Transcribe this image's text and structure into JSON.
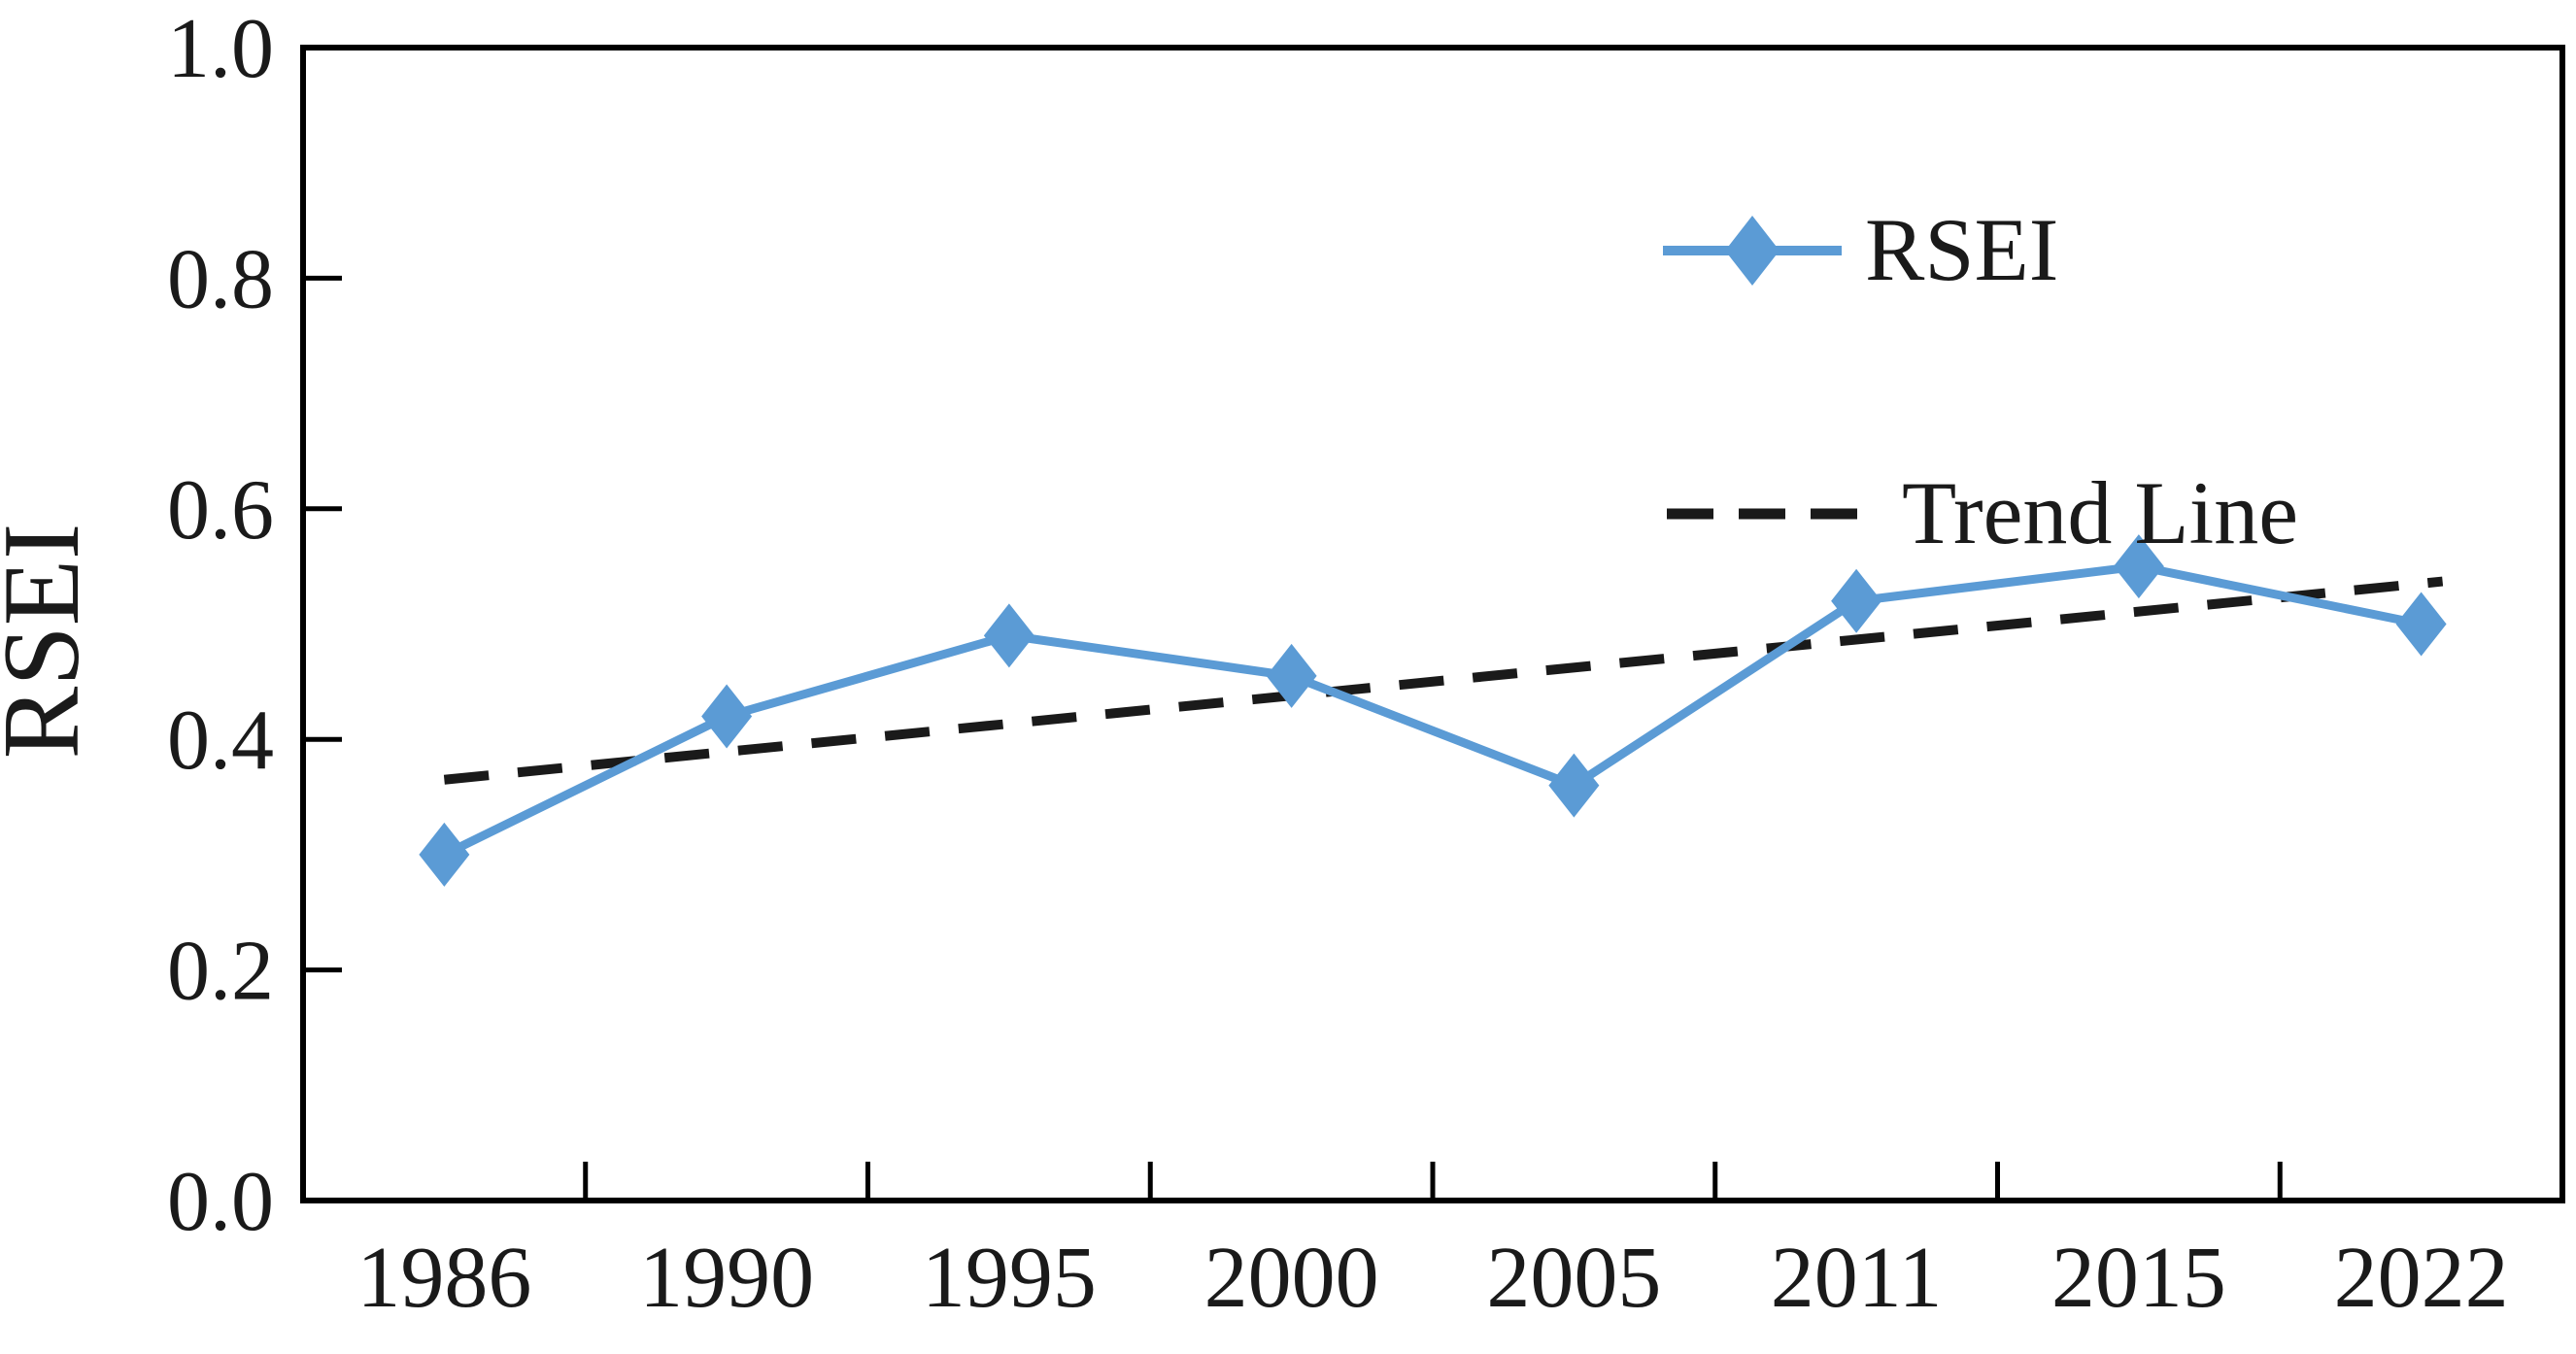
{
  "chart_data": {
    "type": "line",
    "title": "",
    "xlabel": "",
    "ylabel": "RSEI",
    "ylim": [
      0.0,
      1.0
    ],
    "grid": false,
    "legend_position": "upper-right",
    "categories": [
      "1986",
      "1990",
      "1995",
      "2000",
      "2005",
      "2011",
      "2015",
      "2022"
    ],
    "ytick_labels": [
      "0.0",
      "0.2",
      "0.4",
      "0.6",
      "0.8",
      "1.0"
    ],
    "series": [
      {
        "name": "RSEI",
        "values": [
          0.3,
          0.42,
          0.49,
          0.455,
          0.36,
          0.52,
          0.55,
          0.5
        ],
        "color": "#5B9BD5",
        "marker": "diamond",
        "line_style": "solid"
      }
    ],
    "trend": {
      "label": "Trend Line",
      "start_value": 0.365,
      "end_value": 0.537,
      "color": "#1a1a1a",
      "line_style": "dashed"
    },
    "colors": {
      "axis": "#000000",
      "text": "#1a1a1a",
      "background": "#ffffff",
      "accent_blue": "#5B9BD5"
    }
  }
}
